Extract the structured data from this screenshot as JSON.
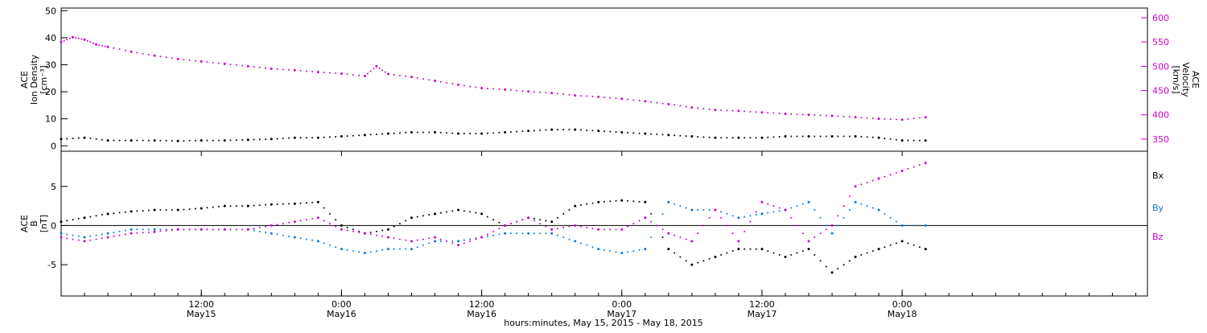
{
  "colors": {
    "black": "#000000",
    "magenta": "#cc00cc",
    "blue": "#0077dd",
    "axis": "#000000"
  },
  "x_axis": {
    "label": "hours:minutes, May 15, 2015 - May 18, 2015",
    "range_hours": [
      0,
      93
    ],
    "ticks": [
      {
        "hours": 12,
        "time": "12:00",
        "date": "May15"
      },
      {
        "hours": 24,
        "time": "0:00",
        "date": "May16"
      },
      {
        "hours": 36,
        "time": "12:00",
        "date": "May16"
      },
      {
        "hours": 48,
        "time": "0:00",
        "date": "May17"
      },
      {
        "hours": 60,
        "time": "12:00",
        "date": "May17"
      },
      {
        "hours": 72,
        "time": "0:00",
        "date": "May18"
      }
    ]
  },
  "chart_data": [
    {
      "type": "scatter",
      "panel": "top",
      "y_left": {
        "label_lines": [
          "ACE",
          "Ion Density",
          "[cm⁻³]"
        ],
        "ylim": [
          -2,
          51
        ],
        "ticks": [
          "0",
          "10",
          "20",
          "30",
          "40",
          "50"
        ],
        "tick_values": [
          0,
          10,
          20,
          30,
          40,
          50
        ]
      },
      "y_right": {
        "label_lines": [
          "ACE",
          "Velocity",
          "[km/s]"
        ],
        "ylim": [
          325,
          620
        ],
        "ticks": [
          "350",
          "400",
          "450",
          "500",
          "550",
          "600"
        ],
        "tick_values": [
          350,
          400,
          450,
          500,
          550,
          600
        ]
      },
      "series": [
        {
          "axis": "left",
          "color": "black",
          "points": [
            [
              0,
              2.5
            ],
            [
              2,
              3
            ],
            [
              4,
              2
            ],
            [
              6,
              2
            ],
            [
              8,
              2
            ],
            [
              10,
              1.8
            ],
            [
              12,
              2
            ],
            [
              14,
              2
            ],
            [
              16,
              2.2
            ],
            [
              18,
              2.5
            ],
            [
              20,
              3
            ],
            [
              22,
              3
            ],
            [
              24,
              3.5
            ],
            [
              26,
              4
            ],
            [
              28,
              4.5
            ],
            [
              30,
              5
            ],
            [
              32,
              5
            ],
            [
              34,
              4.5
            ],
            [
              36,
              4.5
            ],
            [
              38,
              5
            ],
            [
              40,
              5.5
            ],
            [
              42,
              6
            ],
            [
              44,
              6
            ],
            [
              46,
              5.5
            ],
            [
              48,
              5
            ],
            [
              50,
              4.5
            ],
            [
              52,
              4
            ],
            [
              54,
              3.5
            ],
            [
              56,
              3
            ],
            [
              58,
              3
            ],
            [
              60,
              3
            ],
            [
              62,
              3.5
            ],
            [
              64,
              3.5
            ],
            [
              66,
              3.5
            ],
            [
              68,
              3.5
            ],
            [
              70,
              3
            ],
            [
              72,
              2
            ],
            [
              74,
              2
            ]
          ]
        },
        {
          "axis": "right",
          "color": "magenta",
          "points": [
            [
              0,
              550
            ],
            [
              1,
              560
            ],
            [
              2,
              555
            ],
            [
              3,
              545
            ],
            [
              4,
              540
            ],
            [
              6,
              530
            ],
            [
              8,
              522
            ],
            [
              10,
              515
            ],
            [
              12,
              510
            ],
            [
              14,
              505
            ],
            [
              16,
              500
            ],
            [
              18,
              495
            ],
            [
              20,
              492
            ],
            [
              22,
              488
            ],
            [
              24,
              485
            ],
            [
              26,
              480
            ],
            [
              27,
              500
            ],
            [
              28,
              484
            ],
            [
              30,
              478
            ],
            [
              32,
              470
            ],
            [
              34,
              462
            ],
            [
              36,
              455
            ],
            [
              38,
              452
            ],
            [
              40,
              448
            ],
            [
              42,
              445
            ],
            [
              44,
              440
            ],
            [
              46,
              437
            ],
            [
              48,
              433
            ],
            [
              50,
              428
            ],
            [
              52,
              422
            ],
            [
              54,
              415
            ],
            [
              56,
              410
            ],
            [
              58,
              408
            ],
            [
              60,
              405
            ],
            [
              62,
              402
            ],
            [
              64,
              400
            ],
            [
              66,
              398
            ],
            [
              68,
              395
            ],
            [
              70,
              392
            ],
            [
              72,
              390
            ],
            [
              74,
              395
            ]
          ]
        }
      ]
    },
    {
      "type": "scatter",
      "panel": "bottom",
      "y_left": {
        "label_lines": [
          "ACE",
          "B",
          "[nT]"
        ],
        "ylim": [
          -9,
          9.5
        ],
        "ticks": [
          "-5",
          "0",
          "5"
        ],
        "tick_values": [
          -5,
          0,
          5
        ]
      },
      "legend": {
        "placement": "right",
        "entries": [
          {
            "label": "Bx",
            "color": "black"
          },
          {
            "label": "By",
            "color": "blue"
          },
          {
            "label": "Bz",
            "color": "magenta"
          }
        ]
      },
      "zero_line": true,
      "series": [
        {
          "name": "Bx",
          "color": "black",
          "points": [
            [
              0,
              0.5
            ],
            [
              2,
              1
            ],
            [
              4,
              1.5
            ],
            [
              6,
              1.8
            ],
            [
              8,
              2
            ],
            [
              10,
              2
            ],
            [
              12,
              2.2
            ],
            [
              14,
              2.5
            ],
            [
              16,
              2.5
            ],
            [
              18,
              2.7
            ],
            [
              20,
              2.8
            ],
            [
              22,
              3
            ],
            [
              24,
              0
            ],
            [
              26,
              -1
            ],
            [
              28,
              -0.5
            ],
            [
              30,
              1
            ],
            [
              32,
              1.5
            ],
            [
              34,
              2
            ],
            [
              36,
              1.5
            ],
            [
              38,
              0
            ],
            [
              40,
              1
            ],
            [
              42,
              0.5
            ],
            [
              44,
              2.5
            ],
            [
              46,
              3
            ],
            [
              48,
              3.2
            ],
            [
              50,
              3
            ],
            [
              52,
              -3
            ],
            [
              54,
              -5
            ],
            [
              56,
              -4
            ],
            [
              58,
              -3
            ],
            [
              60,
              -3
            ],
            [
              62,
              -4
            ],
            [
              64,
              -3
            ],
            [
              66,
              -6
            ],
            [
              68,
              -4
            ],
            [
              70,
              -3
            ],
            [
              72,
              -2
            ],
            [
              74,
              -3
            ]
          ]
        },
        {
          "name": "By",
          "color": "blue",
          "points": [
            [
              0,
              -1
            ],
            [
              2,
              -1.5
            ],
            [
              4,
              -1
            ],
            [
              6,
              -0.5
            ],
            [
              8,
              -0.5
            ],
            [
              10,
              -0.5
            ],
            [
              12,
              -0.5
            ],
            [
              14,
              -0.5
            ],
            [
              16,
              -0.5
            ],
            [
              18,
              -1
            ],
            [
              20,
              -1.5
            ],
            [
              22,
              -2
            ],
            [
              24,
              -3
            ],
            [
              26,
              -3.5
            ],
            [
              28,
              -3
            ],
            [
              30,
              -3
            ],
            [
              32,
              -2
            ],
            [
              34,
              -2
            ],
            [
              36,
              -1.5
            ],
            [
              38,
              -1
            ],
            [
              40,
              -1
            ],
            [
              42,
              -1
            ],
            [
              44,
              -2
            ],
            [
              46,
              -3
            ],
            [
              48,
              -3.5
            ],
            [
              50,
              -3
            ],
            [
              52,
              3
            ],
            [
              54,
              2
            ],
            [
              56,
              2
            ],
            [
              58,
              1
            ],
            [
              60,
              1.5
            ],
            [
              62,
              2
            ],
            [
              64,
              3
            ],
            [
              66,
              -1
            ],
            [
              68,
              3
            ],
            [
              70,
              2
            ],
            [
              72,
              0
            ],
            [
              74,
              0
            ]
          ]
        },
        {
          "name": "Bz",
          "color": "magenta",
          "points": [
            [
              0,
              -1.5
            ],
            [
              2,
              -2
            ],
            [
              4,
              -1.5
            ],
            [
              6,
              -1
            ],
            [
              8,
              -0.8
            ],
            [
              10,
              -0.5
            ],
            [
              12,
              -0.5
            ],
            [
              14,
              -0.5
            ],
            [
              16,
              -0.5
            ],
            [
              18,
              0
            ],
            [
              20,
              0.5
            ],
            [
              22,
              1
            ],
            [
              24,
              -0.5
            ],
            [
              26,
              -1
            ],
            [
              28,
              -1.5
            ],
            [
              30,
              -2
            ],
            [
              32,
              -1.5
            ],
            [
              34,
              -2.5
            ],
            [
              36,
              -1.5
            ],
            [
              38,
              0
            ],
            [
              40,
              1
            ],
            [
              42,
              -0.5
            ],
            [
              44,
              0
            ],
            [
              46,
              -0.5
            ],
            [
              48,
              -0.5
            ],
            [
              50,
              1
            ],
            [
              52,
              -1
            ],
            [
              54,
              -2
            ],
            [
              56,
              2
            ],
            [
              58,
              -2
            ],
            [
              60,
              3
            ],
            [
              62,
              2
            ],
            [
              64,
              -2
            ],
            [
              66,
              0
            ],
            [
              68,
              5
            ],
            [
              70,
              6
            ],
            [
              72,
              7
            ],
            [
              74,
              8
            ]
          ]
        }
      ]
    }
  ]
}
